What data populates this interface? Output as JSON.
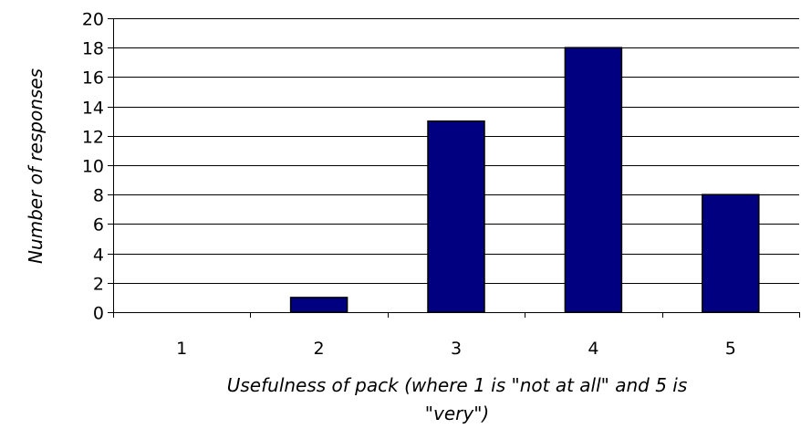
{
  "chart_data": {
    "type": "bar",
    "categories": [
      "1",
      "2",
      "3",
      "4",
      "5"
    ],
    "values": [
      0,
      1,
      13,
      18,
      8
    ],
    "xlabel_lines": [
      "Usefulness of pack (where 1 is \"not at all\" and 5 is",
      "\"very\")"
    ],
    "ylabel": "Number of responses",
    "ylim": [
      0,
      20
    ],
    "yticks": [
      0,
      2,
      4,
      6,
      8,
      10,
      12,
      14,
      16,
      18,
      20
    ],
    "grid": true,
    "legend": "none",
    "colors": {
      "bar_fill": "#000080",
      "bar_stroke": "#000000",
      "grid": "#000000"
    }
  }
}
